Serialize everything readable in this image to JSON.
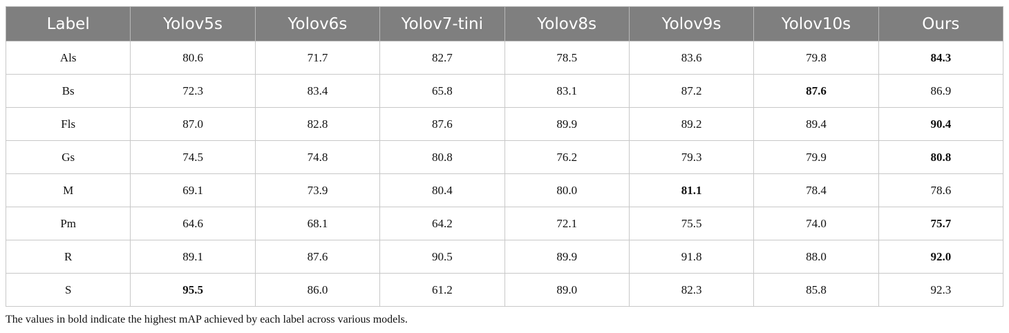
{
  "table": {
    "header": [
      "Label",
      "Yolov5s",
      "Yolov6s",
      "Yolov7-tini",
      "Yolov8s",
      "Yolov9s",
      "Yolov10s",
      "Ours"
    ],
    "rows": [
      {
        "label": "Als",
        "values": [
          "80.6",
          "71.7",
          "82.7",
          "78.5",
          "83.6",
          "79.8",
          "84.3"
        ],
        "bold": [
          6
        ]
      },
      {
        "label": "Bs",
        "values": [
          "72.3",
          "83.4",
          "65.8",
          "83.1",
          "87.2",
          "87.6",
          "86.9"
        ],
        "bold": [
          5
        ]
      },
      {
        "label": "Fls",
        "values": [
          "87.0",
          "82.8",
          "87.6",
          "89.9",
          "89.2",
          "89.4",
          "90.4"
        ],
        "bold": [
          6
        ]
      },
      {
        "label": "Gs",
        "values": [
          "74.5",
          "74.8",
          "80.8",
          "76.2",
          "79.3",
          "79.9",
          "80.8"
        ],
        "bold": [
          6
        ]
      },
      {
        "label": "M",
        "values": [
          "69.1",
          "73.9",
          "80.4",
          "80.0",
          "81.1",
          "78.4",
          "78.6"
        ],
        "bold": [
          4
        ]
      },
      {
        "label": "Pm",
        "values": [
          "64.6",
          "68.1",
          "64.2",
          "72.1",
          "75.5",
          "74.0",
          "75.7"
        ],
        "bold": [
          6
        ]
      },
      {
        "label": "R",
        "values": [
          "89.1",
          "87.6",
          "90.5",
          "89.9",
          "91.8",
          "88.0",
          "92.0"
        ],
        "bold": [
          6
        ]
      },
      {
        "label": "S",
        "values": [
          "95.5",
          "86.0",
          "61.2",
          "89.0",
          "82.3",
          "85.8",
          "92.3"
        ],
        "bold": [
          0
        ]
      }
    ]
  },
  "footnote": "The values in bold indicate the highest mAP achieved by each label across various models."
}
